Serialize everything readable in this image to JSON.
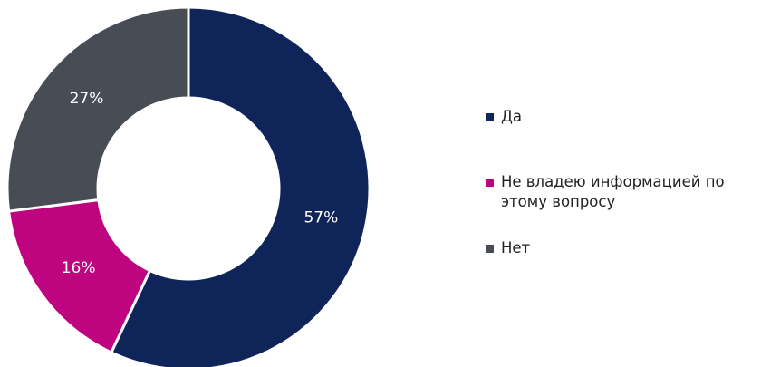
{
  "chart_data": {
    "type": "donut",
    "categories": [
      "Да",
      "Не владею информацией по этому вопросу",
      "Нет"
    ],
    "values": [
      57,
      16,
      27
    ],
    "value_labels": [
      "57%",
      "16%",
      "27%"
    ],
    "colors": [
      "#0f2459",
      "#be047f",
      "#474c55"
    ],
    "legend": "right"
  }
}
